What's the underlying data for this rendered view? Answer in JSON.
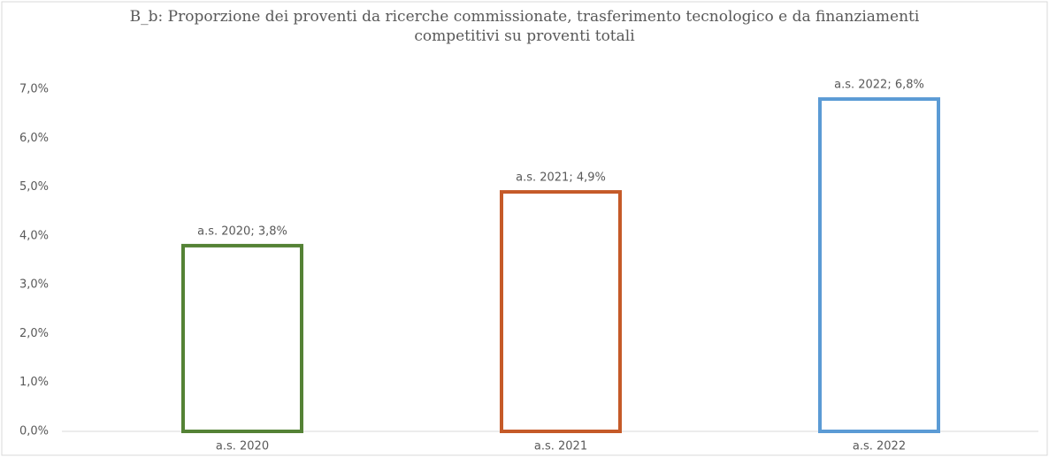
{
  "chart_data": {
    "type": "bar",
    "title": "B_b: Proporzione dei proventi da ricerche commissionate, trasferimento tecnologico e da finanziamenti competitivi su proventi totali",
    "categories": [
      "a.s. 2020",
      "a.s. 2021",
      "a.s. 2022"
    ],
    "values": [
      3.8,
      4.9,
      6.8
    ],
    "value_labels": [
      "a.s. 2020; 3,8%",
      "a.s. 2021; 4,9%",
      "a.s. 2022; 6,8%"
    ],
    "colors": [
      "#548235",
      "#c55a28",
      "#5b9bd5"
    ],
    "ylim": [
      0,
      7
    ],
    "yticks": [
      {
        "value": 0,
        "label": "0,0%"
      },
      {
        "value": 1,
        "label": "1,0%"
      },
      {
        "value": 2,
        "label": "2,0%"
      },
      {
        "value": 3,
        "label": "3,0%"
      },
      {
        "value": 4,
        "label": "4,0%"
      },
      {
        "value": 5,
        "label": "5,0%"
      },
      {
        "value": 6,
        "label": "6,0%"
      },
      {
        "value": 7,
        "label": "7,0%"
      }
    ],
    "grid": false
  }
}
